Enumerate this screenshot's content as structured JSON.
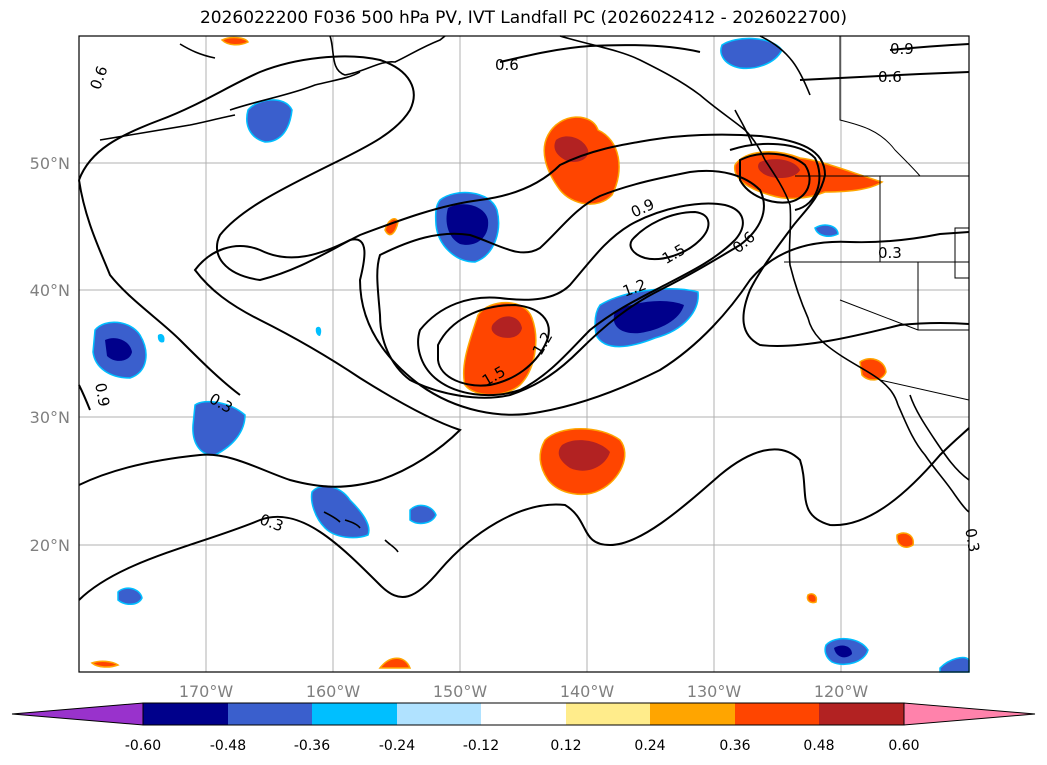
{
  "title": "2026022200 F036 500 hPa PV, IVT Landfall PC (2026022412 - 2026022700)",
  "lon_ticks": [
    "170°W",
    "160°W",
    "150°W",
    "140°W",
    "130°W",
    "120°W"
  ],
  "lat_ticks": [
    "50°N",
    "40°N",
    "30°N",
    "20°N"
  ],
  "contour_labels": [
    "0.6",
    "0.6",
    "0.9",
    "0.6",
    "0.9",
    "1.5",
    "1.2",
    "0.6",
    "0.3",
    "1.5",
    "1.2",
    "0.3",
    "0.3",
    "0.3",
    "0.9"
  ],
  "colorbar": {
    "tick_labels": [
      "-0.60",
      "-0.48",
      "-0.36",
      "-0.24",
      "-0.12",
      "0.12",
      "0.24",
      "0.36",
      "0.48",
      "0.60"
    ],
    "colors": [
      "#9932cc",
      "#00008b",
      "#3a5fcd",
      "#00bfff",
      "#b0e2ff",
      "#ffffff",
      "#ffec8b",
      "#ffa500",
      "#ff4500",
      "#b22222",
      "#ff82ab"
    ]
  },
  "chart_data": {
    "type": "map-contour",
    "title": "2026022200 F036 500 hPa PV, IVT Landfall PC (2026022412 - 2026022700)",
    "contour_levels": [
      0.3,
      0.6,
      0.9,
      1.2,
      1.5
    ],
    "shading_levels": [
      -0.6,
      -0.48,
      -0.36,
      -0.24,
      -0.12,
      0.12,
      0.24,
      0.36,
      0.48,
      0.6
    ],
    "xlim": [
      "180°W",
      "110°W"
    ],
    "ylim": [
      "10°N",
      "60°N"
    ],
    "grid": true
  }
}
